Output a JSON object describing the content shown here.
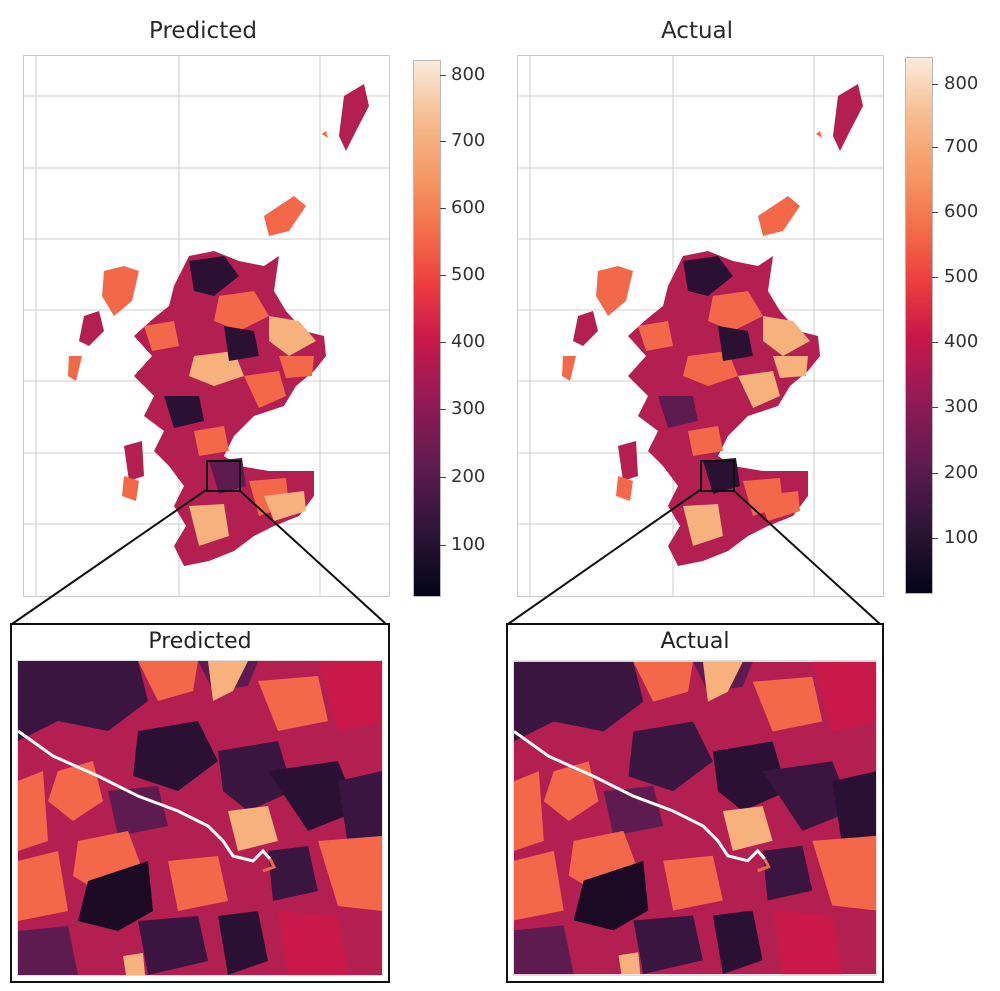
{
  "panels": [
    {
      "title": "Predicted"
    },
    {
      "title": "Actual"
    }
  ],
  "colorbars": [
    {
      "ticks": [
        "800",
        "700",
        "600",
        "500",
        "400",
        "300",
        "200",
        "100"
      ],
      "values": [
        800,
        700,
        600,
        500,
        400,
        300,
        200,
        100
      ],
      "range": [
        25,
        830
      ]
    },
    {
      "ticks": [
        "800",
        "700",
        "600",
        "500",
        "400",
        "300",
        "200",
        "100"
      ],
      "values": [
        800,
        700,
        600,
        500,
        400,
        300,
        200,
        100
      ],
      "range": [
        15,
        840
      ]
    }
  ],
  "insets": [
    {
      "title": "Predicted"
    },
    {
      "title": "Actual"
    }
  ],
  "colors": {
    "dark": "#2a1133",
    "mid": "#b41f52",
    "light": "#f4684a",
    "pale": "#f6b17c",
    "grid": "#d6d6d6",
    "river": "#ffffff"
  }
}
